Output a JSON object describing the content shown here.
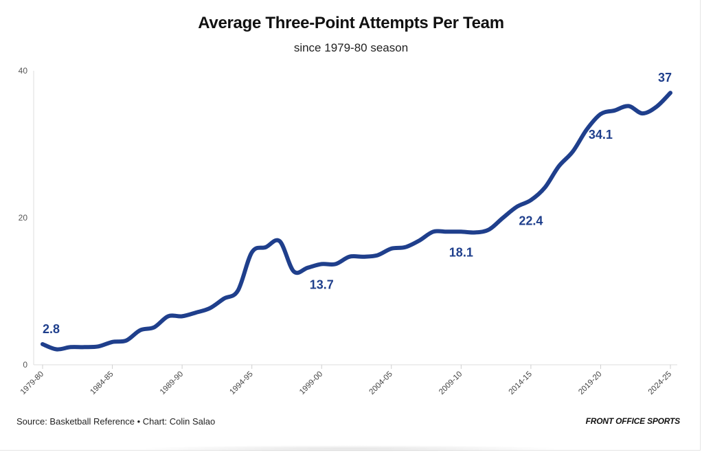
{
  "chart_data": {
    "type": "line",
    "title": "Average Three-Point Attempts Per Team",
    "subtitle": "since 1979-80 season",
    "xlabel": "",
    "ylabel": "",
    "ylim": [
      0,
      40
    ],
    "yticks": [
      "0",
      "20",
      "40"
    ],
    "grid": false,
    "xtick_labels": [
      "1979-80",
      "1984-85",
      "1989-90",
      "1994-95",
      "1999-00",
      "2004-05",
      "2009-10",
      "2014-15",
      "2019-20",
      "2024-25"
    ],
    "x": [
      "1979-80",
      "1980-81",
      "1981-82",
      "1982-83",
      "1983-84",
      "1984-85",
      "1985-86",
      "1986-87",
      "1987-88",
      "1988-89",
      "1989-90",
      "1990-91",
      "1991-92",
      "1992-93",
      "1993-94",
      "1994-95",
      "1995-96",
      "1996-97",
      "1997-98",
      "1998-99",
      "1999-00",
      "2000-01",
      "2001-02",
      "2002-03",
      "2003-04",
      "2004-05",
      "2005-06",
      "2006-07",
      "2007-08",
      "2008-09",
      "2009-10",
      "2010-11",
      "2011-12",
      "2012-13",
      "2013-14",
      "2014-15",
      "2015-16",
      "2016-17",
      "2017-18",
      "2018-19",
      "2019-20",
      "2020-21",
      "2021-22",
      "2022-23",
      "2023-24",
      "2024-25"
    ],
    "series": [
      {
        "values": [
          2.8,
          2.1,
          2.4,
          2.4,
          2.5,
          3.1,
          3.3,
          4.7,
          5.1,
          6.6,
          6.6,
          7.1,
          7.7,
          9.0,
          10.1,
          15.3,
          16.0,
          16.8,
          12.7,
          13.2,
          13.7,
          13.7,
          14.7,
          14.7,
          14.9,
          15.8,
          16.0,
          16.9,
          18.1,
          18.1,
          18.1,
          18.0,
          18.4,
          20.0,
          21.5,
          22.4,
          24.1,
          27.0,
          29.0,
          32.0,
          34.1,
          34.6,
          35.2,
          34.2,
          35.1,
          37.0
        ],
        "color": "#1f3f8c"
      }
    ],
    "annotations": [
      {
        "x": "1979-80",
        "label": "2.8"
      },
      {
        "x": "1999-00",
        "label": "13.7"
      },
      {
        "x": "2009-10",
        "label": "18.1"
      },
      {
        "x": "2014-15",
        "label": "22.4"
      },
      {
        "x": "2019-20",
        "label": "34.1"
      },
      {
        "x": "2024-25",
        "label": "37"
      }
    ]
  },
  "footer": {
    "source": "Source: Basketball Reference • Chart: Colin Salao",
    "brand": "FRONT OFFICE SPORTS"
  }
}
